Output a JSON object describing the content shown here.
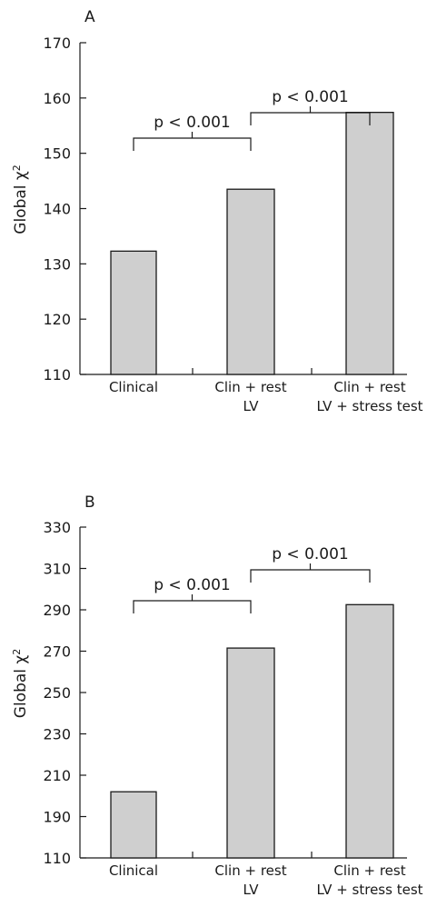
{
  "chart_data": [
    {
      "type": "bar",
      "panel_label": "A",
      "categories": [
        [
          "Clinical"
        ],
        [
          "Clin + rest",
          "LV"
        ],
        [
          "Clin + rest",
          "LV + stress test"
        ]
      ],
      "values": [
        132.3,
        143.5,
        157.4
      ],
      "ylabel": "Global χ",
      "ylabel_superscript": "2",
      "ylim": [
        110,
        170
      ],
      "yticks": [
        110,
        120,
        130,
        140,
        150,
        160,
        170
      ],
      "comparisons": [
        {
          "from": 0,
          "to": 1,
          "label": "p < 0.001"
        },
        {
          "from": 1,
          "to": 2,
          "label": "p < 0.001"
        }
      ]
    },
    {
      "type": "bar",
      "panel_label": "B",
      "categories": [
        [
          "Clinical"
        ],
        [
          "Clin + rest",
          "LV"
        ],
        [
          "Clin + rest",
          "LV + stress test"
        ]
      ],
      "values": [
        202,
        271.5,
        292.5
      ],
      "ylabel": "Global χ",
      "ylabel_superscript": "2",
      "ylim": [
        170,
        330
      ],
      "yticks": [
        110,
        190,
        210,
        230,
        250,
        270,
        290,
        310,
        330
      ],
      "axis_break": true,
      "comparisons": [
        {
          "from": 0,
          "to": 1,
          "label": "p < 0.001"
        },
        {
          "from": 1,
          "to": 2,
          "label": "p < 0.001"
        }
      ]
    }
  ]
}
